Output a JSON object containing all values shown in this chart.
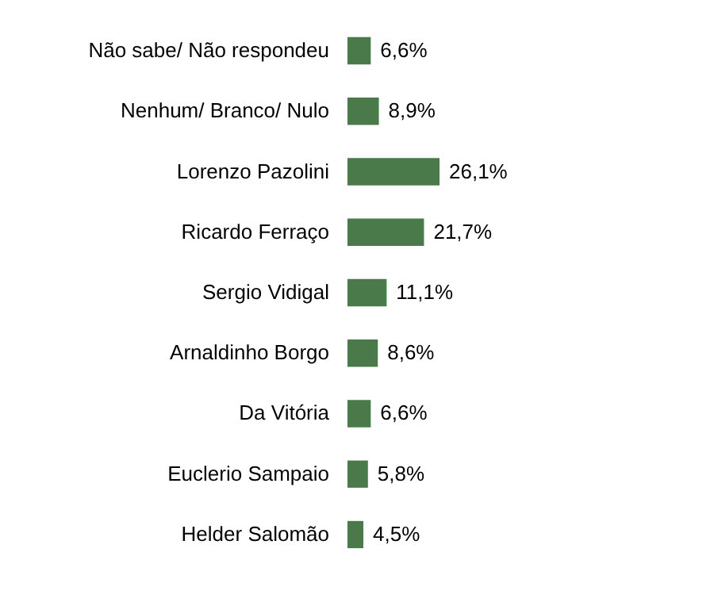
{
  "chart_data": {
    "type": "bar",
    "orientation": "horizontal",
    "categories": [
      "Não sabe/ Não respondeu",
      "Nenhum/ Branco/ Nulo",
      "Lorenzo Pazolini",
      "Ricardo Ferraço",
      "Sergio Vidigal",
      "Arnaldinho Borgo",
      "Da Vitória",
      "Euclerio Sampaio",
      "Helder Salomão"
    ],
    "values": [
      6.6,
      8.9,
      26.1,
      21.7,
      11.1,
      8.6,
      6.6,
      5.8,
      4.5
    ],
    "value_labels": [
      "6,6%",
      "8,9%",
      "26,1%",
      "21,7%",
      "11,1%",
      "8,6%",
      "6,6%",
      "5,8%",
      "4,5%"
    ],
    "color": "#4a7a4a"
  }
}
